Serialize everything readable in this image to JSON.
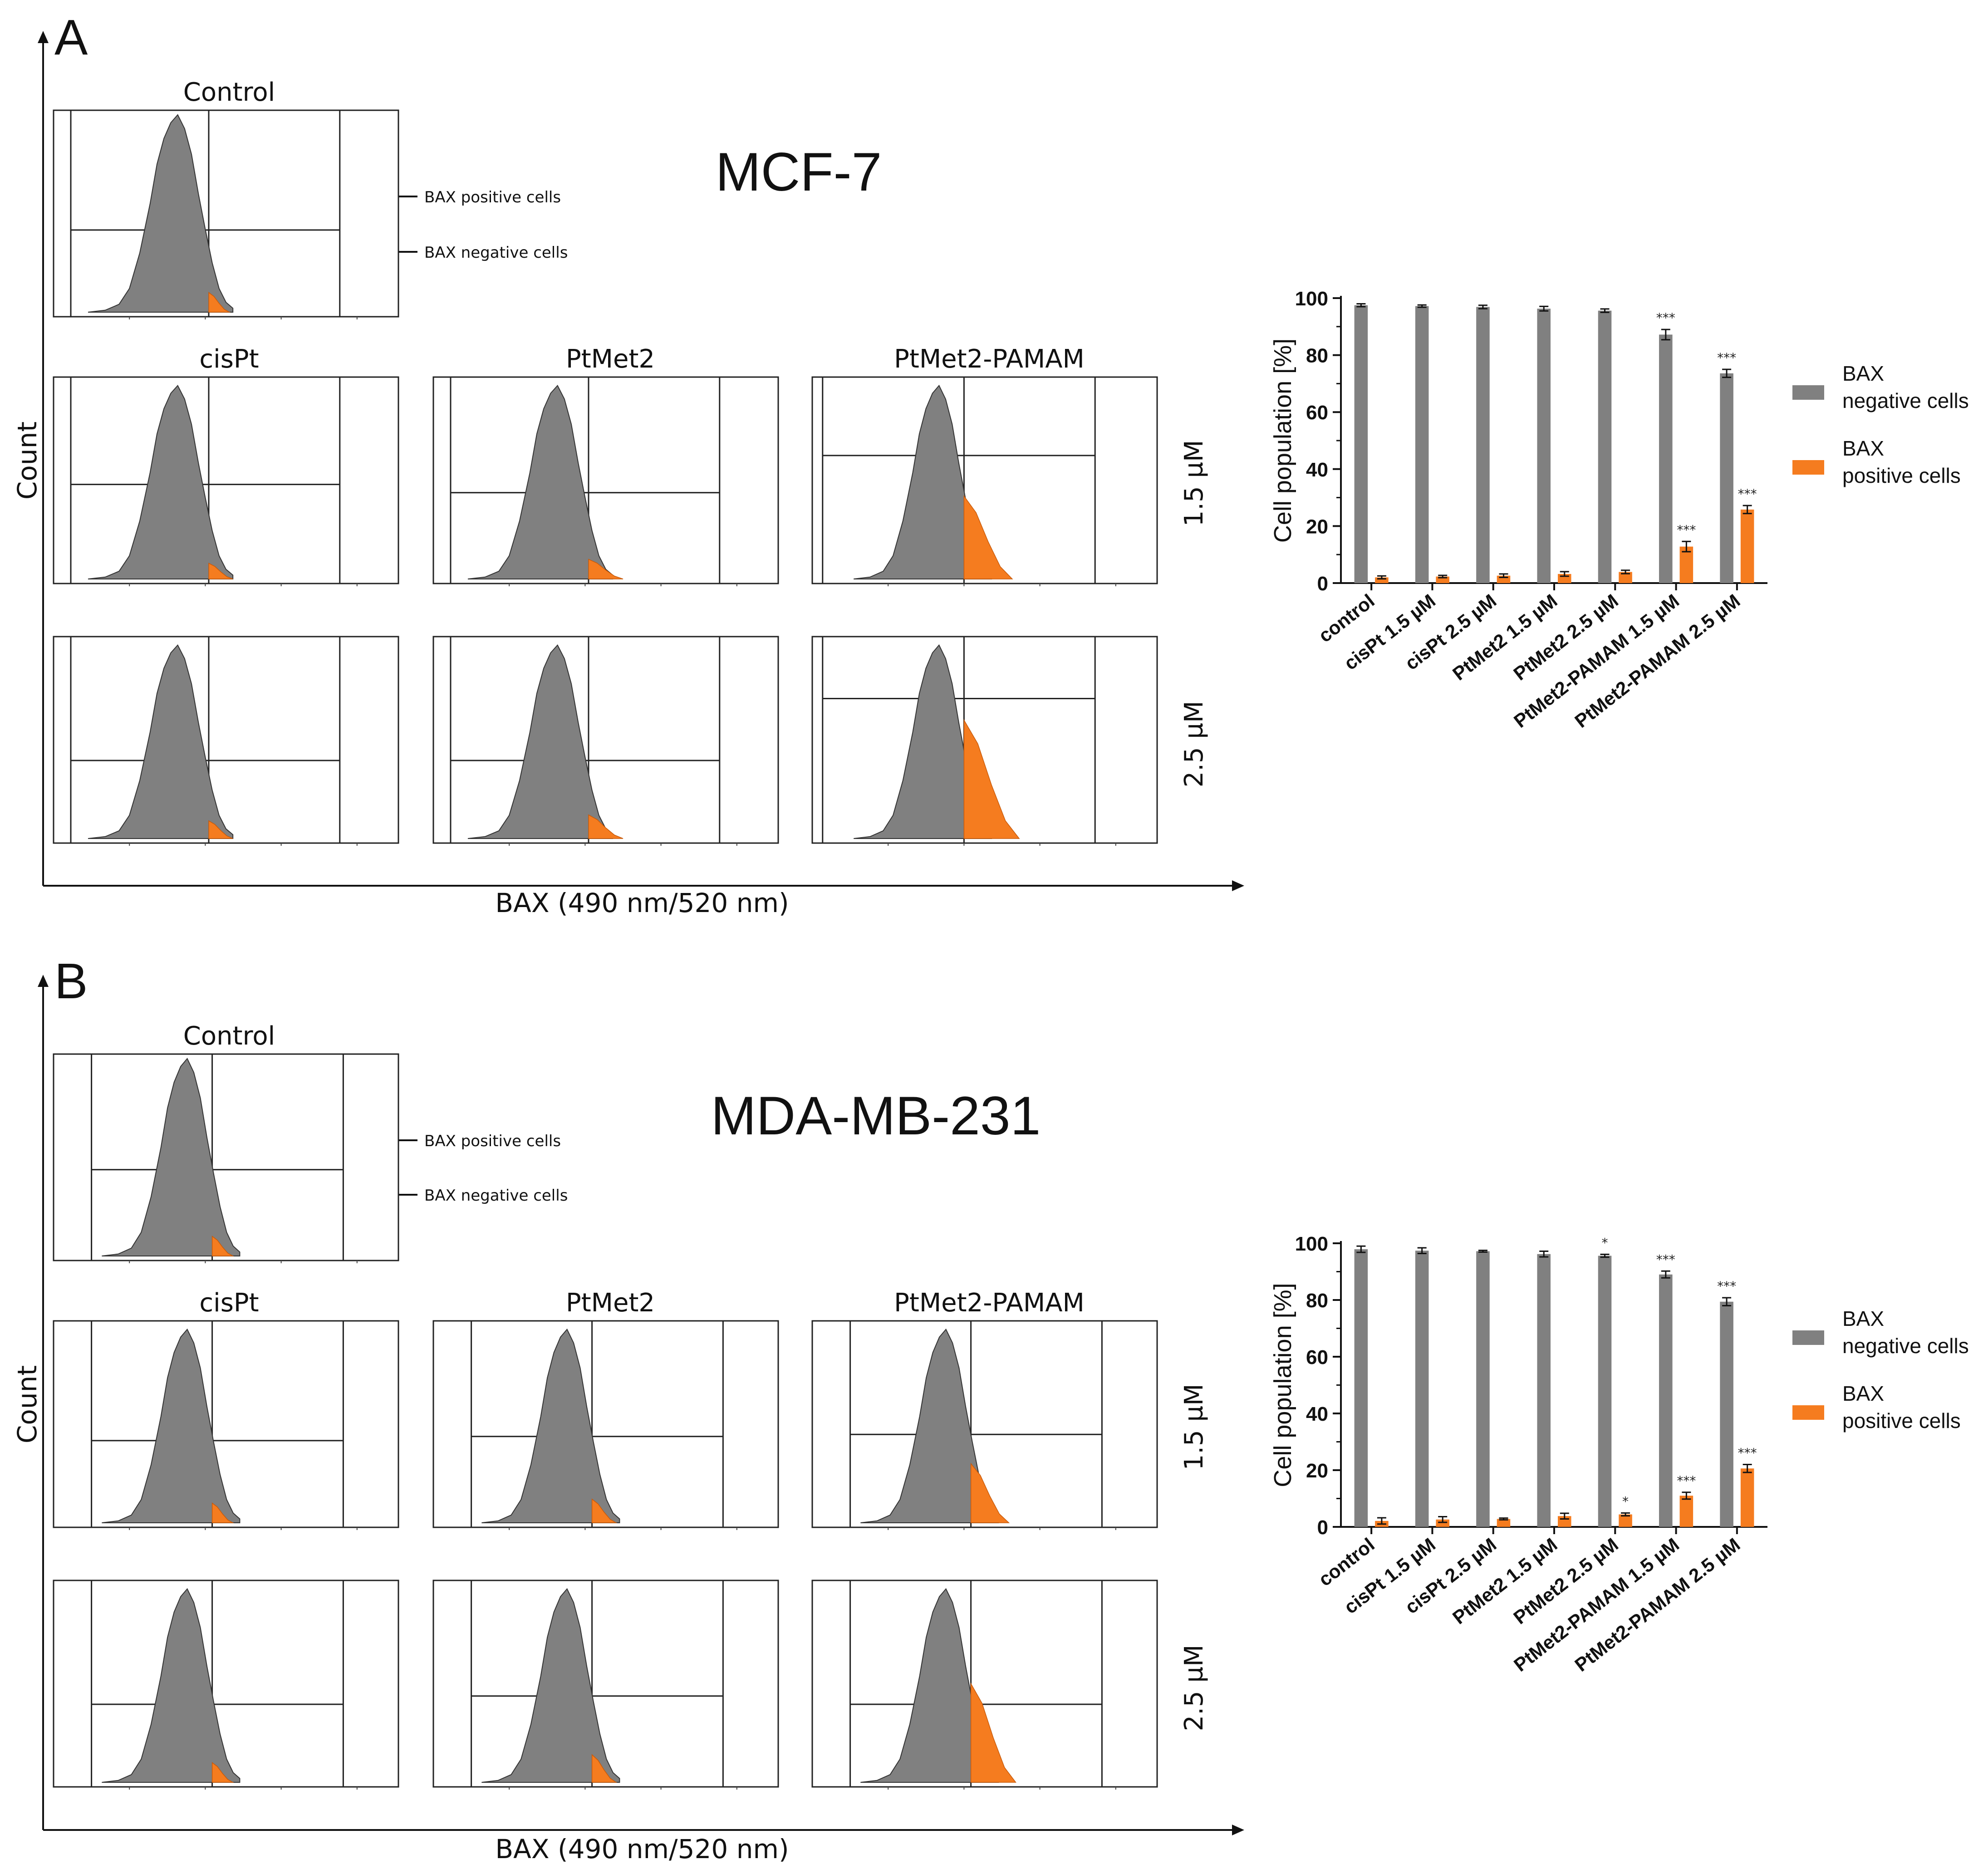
{
  "panels": [
    {
      "letter": "A",
      "cell_line": "MCF-7",
      "axis_y": "Count",
      "axis_x": "BAX (490 nm/520 nm)",
      "annotation_positive": "BAX positive cells",
      "annotation_negative": "BAX negative cells",
      "hist_titles": {
        "control": "Control",
        "cispt": "cisPt",
        "ptmet2": "PtMet2",
        "pamam": "PtMet2-PAMAM"
      },
      "conc_labels": [
        "1.5 µM",
        "2.5 µM"
      ]
    },
    {
      "letter": "B",
      "cell_line": "MDA-MB-231",
      "axis_y": "Count",
      "axis_x": "BAX (490 nm/520 nm)",
      "annotation_positive": "BAX positive cells",
      "annotation_negative": "BAX negative cells",
      "hist_titles": {
        "control": "Control",
        "cispt": "cisPt",
        "ptmet2": "PtMet2",
        "pamam": "PtMet2-PAMAM"
      },
      "conc_labels": [
        "1.5 µM",
        "2.5 µM"
      ]
    }
  ],
  "colors": {
    "negative": "#808080",
    "positive": "#f57c1f",
    "text": "#1a1a1a"
  },
  "chart_data": [
    {
      "type": "bar",
      "ylabel": "Cell population [%]",
      "ylim": [
        0,
        100
      ],
      "yticks": [
        "0",
        "20",
        "40",
        "60",
        "80",
        "100"
      ],
      "categories": [
        "control",
        "cisPt 1.5 µM",
        "cisPt 2.5 µM",
        "PtMet2 1.5 µM",
        "PtMet2 2.5 µM",
        "PtMet2-PAMAM 1.5 µM",
        "PtMet2-PAMAM 2.5 µM"
      ],
      "series": [
        {
          "name": "BAX negative cells",
          "legend": [
            "BAX",
            "negative cells"
          ],
          "color": "#808080",
          "values": [
            97.5,
            97.2,
            96.9,
            96.3,
            95.6,
            87.2,
            73.6
          ],
          "errors": [
            0.5,
            0.4,
            0.6,
            0.8,
            0.6,
            1.8,
            1.4
          ],
          "sig": [
            "",
            "",
            "",
            "",
            "",
            "***",
            "***"
          ]
        },
        {
          "name": "BAX positive cells",
          "legend": [
            "BAX",
            "positive cells"
          ],
          "color": "#f57c1f",
          "values": [
            2.0,
            2.3,
            2.6,
            3.2,
            3.9,
            12.8,
            25.8
          ],
          "errors": [
            0.5,
            0.4,
            0.6,
            0.8,
            0.6,
            1.8,
            1.4
          ],
          "sig": [
            "",
            "",
            "",
            "",
            "",
            "***",
            "***"
          ]
        }
      ],
      "legend": "right"
    },
    {
      "type": "bar",
      "ylabel": "Cell population [%]",
      "ylim": [
        0,
        100
      ],
      "yticks": [
        "0",
        "20",
        "40",
        "60",
        "80",
        "100"
      ],
      "categories": [
        "control",
        "cisPt 1.5 µM",
        "cisPt 2.5 µM",
        "PtMet2 1.5 µM",
        "PtMet2 2.5 µM",
        "PtMet2-PAMAM 1.5 µM",
        "PtMet2-PAMAM 2.5 µM"
      ],
      "series": [
        {
          "name": "BAX negative cells",
          "legend": [
            "BAX",
            "negative cells"
          ],
          "color": "#808080",
          "values": [
            97.9,
            97.4,
            97.2,
            96.2,
            95.6,
            89.0,
            79.4
          ],
          "errors": [
            1.1,
            1.0,
            0.3,
            1.0,
            0.5,
            1.2,
            1.4
          ],
          "sig": [
            "",
            "",
            "",
            "",
            "*",
            "***",
            "***"
          ]
        },
        {
          "name": "BAX positive cells",
          "legend": [
            "BAX",
            "positive cells"
          ],
          "color": "#f57c1f",
          "values": [
            2.1,
            2.6,
            2.8,
            3.8,
            4.4,
            11.0,
            20.6
          ],
          "errors": [
            1.1,
            1.0,
            0.3,
            1.0,
            0.5,
            1.2,
            1.4
          ],
          "sig": [
            "",
            "",
            "",
            "",
            "*",
            "***",
            "***"
          ]
        }
      ],
      "legend": "right"
    }
  ]
}
